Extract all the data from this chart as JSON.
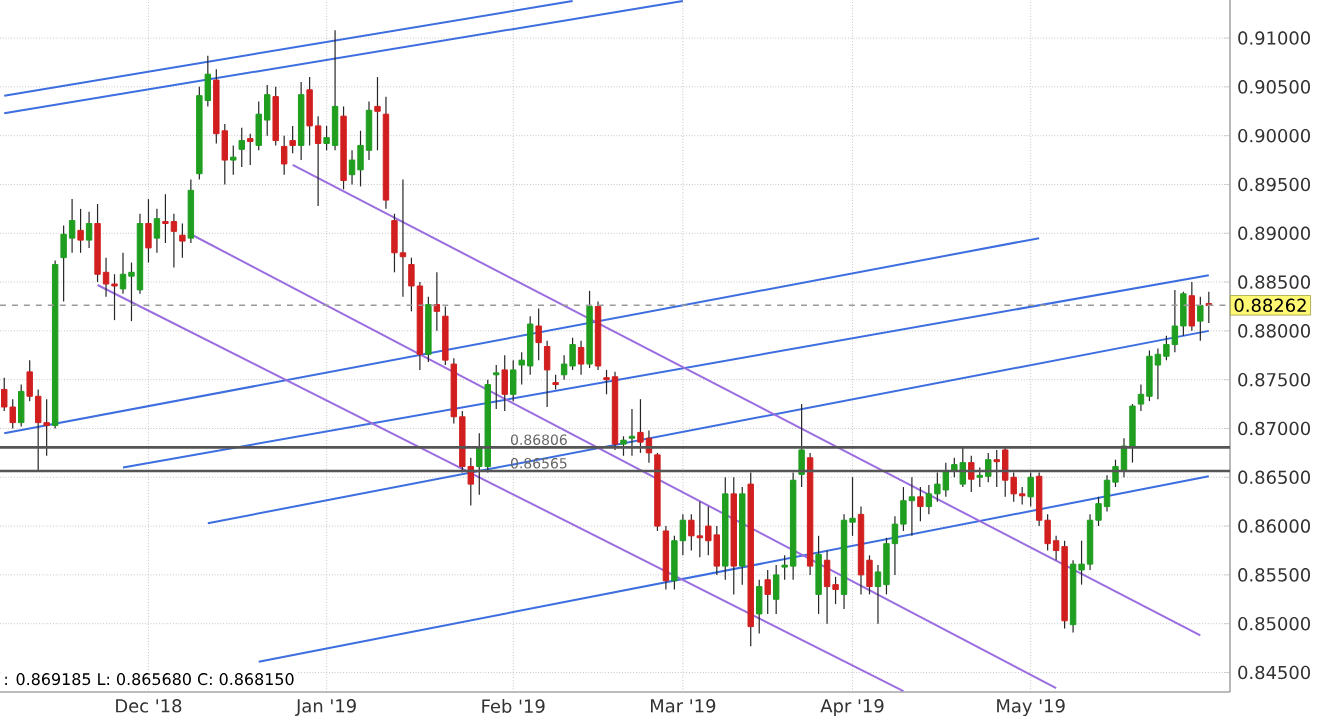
{
  "chart_data": {
    "type": "candlestick",
    "categories": [
      null,
      null,
      null,
      null,
      null,
      null,
      null,
      null,
      null,
      null,
      null,
      null,
      null,
      null,
      null,
      null,
      null,
      "Dec '18",
      null,
      null,
      null,
      null,
      null,
      null,
      null,
      null,
      null,
      null,
      null,
      null,
      null,
      null,
      null,
      null,
      null,
      null,
      null,
      null,
      "Jan '19",
      null,
      null,
      null,
      null,
      null,
      null,
      null,
      null,
      null,
      null,
      null,
      null,
      null,
      null,
      null,
      null,
      null,
      null,
      null,
      null,
      null,
      "Feb '19",
      null,
      null,
      null,
      null,
      null,
      null,
      null,
      null,
      null,
      null,
      null,
      null,
      null,
      null,
      null,
      null,
      null,
      null,
      null,
      "Mar '19",
      null,
      null,
      null,
      null,
      null,
      null,
      null,
      null,
      null,
      null,
      null,
      null,
      null,
      null,
      null,
      null,
      null,
      null,
      null,
      "Apr '19",
      null,
      null,
      null,
      null,
      null,
      null,
      null,
      null,
      null,
      null,
      null,
      null,
      null,
      null,
      null,
      null,
      null,
      null,
      null,
      null,
      "May '19",
      null,
      null,
      null,
      null,
      null,
      null,
      null,
      null,
      null,
      null,
      null,
      null,
      null,
      null,
      null,
      null,
      null,
      null,
      null,
      null,
      null
    ],
    "ohlc": [
      [
        0.874,
        0.8752,
        0.8718,
        0.8722
      ],
      [
        0.8722,
        0.873,
        0.87,
        0.8706
      ],
      [
        0.8706,
        0.8745,
        0.8702,
        0.8738
      ],
      [
        0.8758,
        0.877,
        0.8728,
        0.8733
      ],
      [
        0.8733,
        0.874,
        0.8657,
        0.8706
      ],
      [
        0.8706,
        0.873,
        0.8672,
        0.8703
      ],
      [
        0.8703,
        0.8872,
        0.87,
        0.8868
      ],
      [
        0.8875,
        0.8908,
        0.883,
        0.8899
      ],
      [
        0.8895,
        0.8935,
        0.888,
        0.8913
      ],
      [
        0.8903,
        0.8925,
        0.888,
        0.8893
      ],
      [
        0.8893,
        0.8922,
        0.8885,
        0.891
      ],
      [
        0.891,
        0.893,
        0.885,
        0.8858
      ],
      [
        0.886,
        0.8875,
        0.8835,
        0.8848
      ],
      [
        0.8848,
        0.8858,
        0.8811,
        0.8846
      ],
      [
        0.8843,
        0.888,
        0.8838,
        0.8858
      ],
      [
        0.8856,
        0.887,
        0.881,
        0.886
      ],
      [
        0.8842,
        0.892,
        0.8838,
        0.891
      ],
      [
        0.891,
        0.8935,
        0.887,
        0.8885
      ],
      [
        0.8895,
        0.8925,
        0.888,
        0.8915
      ],
      [
        0.8912,
        0.894,
        0.889,
        0.891
      ],
      [
        0.8912,
        0.892,
        0.8865,
        0.8902
      ],
      [
        0.8898,
        0.891,
        0.8875,
        0.8892
      ],
      [
        0.8895,
        0.8955,
        0.889,
        0.8944
      ],
      [
        0.8961,
        0.905,
        0.8955,
        0.9041
      ],
      [
        0.9036,
        0.9082,
        0.903,
        0.9063
      ],
      [
        0.9057,
        0.9068,
        0.8992,
        0.9002
      ],
      [
        0.9005,
        0.9012,
        0.895,
        0.8975
      ],
      [
        0.8975,
        0.899,
        0.896,
        0.8978
      ],
      [
        0.8986,
        0.9008,
        0.8968,
        0.8995
      ],
      [
        0.8997,
        0.9002,
        0.897,
        0.8994
      ],
      [
        0.899,
        0.9035,
        0.8985,
        0.9022
      ],
      [
        0.9016,
        0.9052,
        0.9,
        0.9042
      ],
      [
        0.904,
        0.905,
        0.899,
        0.8995
      ],
      [
        0.8989,
        0.9,
        0.896,
        0.8971
      ],
      [
        0.8995,
        0.901,
        0.8982,
        0.899
      ],
      [
        0.899,
        0.9055,
        0.8975,
        0.9042
      ],
      [
        0.9047,
        0.906,
        0.899,
        0.901
      ],
      [
        0.901,
        0.902,
        0.8928,
        0.8992
      ],
      [
        0.8992,
        0.901,
        0.8985,
        0.8998
      ],
      [
        0.899,
        0.9108,
        0.8985,
        0.903
      ],
      [
        0.902,
        0.903,
        0.8945,
        0.8954
      ],
      [
        0.896,
        0.8985,
        0.895,
        0.8975
      ],
      [
        0.8965,
        0.9005,
        0.8948,
        0.899
      ],
      [
        0.8985,
        0.9035,
        0.8975,
        0.9026
      ],
      [
        0.903,
        0.906,
        0.8985,
        0.9025
      ],
      [
        0.9022,
        0.904,
        0.8925,
        0.8934
      ],
      [
        0.8913,
        0.892,
        0.886,
        0.888
      ],
      [
        0.888,
        0.8955,
        0.8835,
        0.8876
      ],
      [
        0.8868,
        0.8875,
        0.882,
        0.8846
      ],
      [
        0.8846,
        0.885,
        0.876,
        0.8776
      ],
      [
        0.8776,
        0.8835,
        0.8768,
        0.8827
      ],
      [
        0.8827,
        0.886,
        0.88,
        0.882
      ],
      [
        0.8815,
        0.8825,
        0.8765,
        0.877
      ],
      [
        0.8766,
        0.8772,
        0.8705,
        0.8712
      ],
      [
        0.8712,
        0.8718,
        0.8655,
        0.8661
      ],
      [
        0.8661,
        0.867,
        0.8621,
        0.8643
      ],
      [
        0.8661,
        0.8695,
        0.8632,
        0.868
      ],
      [
        0.8661,
        0.875,
        0.8655,
        0.8745
      ],
      [
        0.8755,
        0.8765,
        0.872,
        0.8757
      ],
      [
        0.876,
        0.8775,
        0.8718,
        0.8735
      ],
      [
        0.8735,
        0.877,
        0.8728,
        0.876
      ],
      [
        0.8765,
        0.8778,
        0.8745,
        0.877
      ],
      [
        0.8764,
        0.8815,
        0.8755,
        0.8807
      ],
      [
        0.8805,
        0.8823,
        0.877,
        0.8788
      ],
      [
        0.8784,
        0.879,
        0.8722,
        0.876
      ],
      [
        0.8747,
        0.8755,
        0.874,
        0.8745
      ],
      [
        0.8755,
        0.8775,
        0.875,
        0.8766
      ],
      [
        0.8764,
        0.8793,
        0.876,
        0.8786
      ],
      [
        0.8783,
        0.879,
        0.8755,
        0.8766
      ],
      [
        0.8766,
        0.8841,
        0.8762,
        0.8825
      ],
      [
        0.8825,
        0.883,
        0.876,
        0.8764
      ],
      [
        0.8752,
        0.876,
        0.8735,
        0.875
      ],
      [
        0.8753,
        0.8758,
        0.8678,
        0.8684
      ],
      [
        0.8684,
        0.8692,
        0.8672,
        0.8688
      ],
      [
        0.869,
        0.872,
        0.8672,
        0.8692
      ],
      [
        0.8696,
        0.873,
        0.8675,
        0.8686
      ],
      [
        0.869,
        0.8698,
        0.8665,
        0.8675
      ],
      [
        0.8673,
        0.8675,
        0.8595,
        0.86
      ],
      [
        0.8595,
        0.86,
        0.8535,
        0.8544
      ],
      [
        0.8544,
        0.859,
        0.8535,
        0.8585
      ],
      [
        0.8585,
        0.8612,
        0.857,
        0.8606
      ],
      [
        0.8606,
        0.8612,
        0.8575,
        0.859
      ],
      [
        0.859,
        0.8625,
        0.8568,
        0.8588
      ],
      [
        0.86,
        0.862,
        0.857,
        0.8585
      ],
      [
        0.8591,
        0.86,
        0.855,
        0.8559
      ],
      [
        0.8559,
        0.865,
        0.8545,
        0.8633
      ],
      [
        0.8633,
        0.865,
        0.853,
        0.8559
      ],
      [
        0.8559,
        0.864,
        0.854,
        0.8633
      ],
      [
        0.8643,
        0.8655,
        0.8477,
        0.8497
      ],
      [
        0.851,
        0.8545,
        0.849,
        0.8538
      ],
      [
        0.8545,
        0.8555,
        0.851,
        0.853
      ],
      [
        0.8525,
        0.856,
        0.851,
        0.855
      ],
      [
        0.8558,
        0.857,
        0.8545,
        0.856
      ],
      [
        0.8559,
        0.8655,
        0.8545,
        0.8647
      ],
      [
        0.8653,
        0.8725,
        0.864,
        0.8678
      ],
      [
        0.867,
        0.8675,
        0.855,
        0.8559
      ],
      [
        0.853,
        0.859,
        0.851,
        0.8571
      ],
      [
        0.8565,
        0.8575,
        0.85,
        0.8538
      ],
      [
        0.854,
        0.8548,
        0.852,
        0.8535
      ],
      [
        0.853,
        0.8612,
        0.8515,
        0.8606
      ],
      [
        0.8604,
        0.865,
        0.859,
        0.8608
      ],
      [
        0.8612,
        0.862,
        0.853,
        0.855
      ],
      [
        0.8565,
        0.857,
        0.853,
        0.8538
      ],
      [
        0.8538,
        0.856,
        0.85,
        0.8553
      ],
      [
        0.854,
        0.8588,
        0.853,
        0.8582
      ],
      [
        0.8582,
        0.861,
        0.855,
        0.8602
      ],
      [
        0.8602,
        0.864,
        0.8595,
        0.8626
      ],
      [
        0.8626,
        0.865,
        0.859,
        0.863
      ],
      [
        0.863,
        0.864,
        0.8605,
        0.862
      ],
      [
        0.862,
        0.8642,
        0.8612,
        0.8633
      ],
      [
        0.8633,
        0.8655,
        0.8625,
        0.8643
      ],
      [
        0.8637,
        0.8665,
        0.863,
        0.8657
      ],
      [
        0.8657,
        0.867,
        0.865,
        0.8663
      ],
      [
        0.8643,
        0.868,
        0.864,
        0.8665
      ],
      [
        0.8665,
        0.8672,
        0.8635,
        0.8648
      ],
      [
        0.865,
        0.866,
        0.864,
        0.8652
      ],
      [
        0.8651,
        0.8675,
        0.8645,
        0.8668
      ],
      [
        0.8668,
        0.8678,
        0.864,
        0.8666
      ],
      [
        0.8678,
        0.8682,
        0.863,
        0.8647
      ],
      [
        0.865,
        0.8655,
        0.8625,
        0.8633
      ],
      [
        0.8633,
        0.864,
        0.8622,
        0.8631
      ],
      [
        0.863,
        0.8655,
        0.862,
        0.865
      ],
      [
        0.8651,
        0.8655,
        0.86,
        0.8606
      ],
      [
        0.8606,
        0.8612,
        0.8575,
        0.8582
      ],
      [
        0.8585,
        0.859,
        0.8565,
        0.8575
      ],
      [
        0.8579,
        0.8585,
        0.8495,
        0.8503
      ],
      [
        0.8499,
        0.8565,
        0.8491,
        0.8561
      ],
      [
        0.8555,
        0.8585,
        0.854,
        0.8561
      ],
      [
        0.8561,
        0.8612,
        0.8555,
        0.8606
      ],
      [
        0.8606,
        0.863,
        0.86,
        0.8623
      ],
      [
        0.862,
        0.8652,
        0.8615,
        0.8647
      ],
      [
        0.8645,
        0.8668,
        0.864,
        0.8661
      ],
      [
        0.8657,
        0.869,
        0.865,
        0.8682
      ],
      [
        0.8682,
        0.8725,
        0.8665,
        0.8723
      ],
      [
        0.8725,
        0.8745,
        0.8718,
        0.8735
      ],
      [
        0.8733,
        0.878,
        0.8728,
        0.8774
      ],
      [
        0.8765,
        0.8782,
        0.873,
        0.8776
      ],
      [
        0.8774,
        0.8795,
        0.877,
        0.8786
      ],
      [
        0.8786,
        0.8842,
        0.8778,
        0.8805
      ],
      [
        0.8805,
        0.884,
        0.8795,
        0.8838
      ],
      [
        0.8836,
        0.885,
        0.88,
        0.8805
      ],
      [
        0.881,
        0.8835,
        0.879,
        0.8826
      ],
      [
        0.8828,
        0.884,
        0.8808,
        0.8826
      ]
    ],
    "colors": [
      "#d11f1f",
      "#d11f1f",
      "#1f9e1f",
      "#d11f1f",
      "#d11f1f",
      "#d11f1f",
      "#1f9e1f",
      "#1f9e1f",
      "#1f9e1f",
      "#d11f1f",
      "#1f9e1f",
      "#d11f1f",
      "#d11f1f",
      "#d11f1f",
      "#1f9e1f",
      "#1f9e1f",
      "#1f9e1f",
      "#d11f1f",
      "#1f9e1f",
      "#d11f1f",
      "#d11f1f",
      "#d11f1f",
      "#1f9e1f",
      "#1f9e1f",
      "#1f9e1f",
      "#d11f1f",
      "#d11f1f",
      "#1f9e1f",
      "#1f9e1f",
      "#d11f1f",
      "#1f9e1f",
      "#1f9e1f",
      "#d11f1f",
      "#d11f1f",
      "#d11f1f",
      "#1f9e1f",
      "#d11f1f",
      "#d11f1f",
      "#1f9e1f",
      "#1f9e1f",
      "#d11f1f",
      "#1f9e1f",
      "#1f9e1f",
      "#1f9e1f",
      "#d11f1f",
      "#d11f1f",
      "#d11f1f",
      "#d11f1f",
      "#d11f1f",
      "#d11f1f",
      "#1f9e1f",
      "#d11f1f",
      "#d11f1f",
      "#d11f1f",
      "#d11f1f",
      "#d11f1f",
      "#1f9e1f",
      "#1f9e1f",
      "#1f9e1f",
      "#d11f1f",
      "#1f9e1f",
      "#1f9e1f",
      "#1f9e1f",
      "#d11f1f",
      "#d11f1f",
      "#d11f1f",
      "#1f9e1f",
      "#1f9e1f",
      "#d11f1f",
      "#1f9e1f",
      "#d11f1f",
      "#d11f1f",
      "#d11f1f",
      "#1f9e1f",
      "#1f9e1f",
      "#d11f1f",
      "#d11f1f",
      "#d11f1f",
      "#d11f1f",
      "#1f9e1f",
      "#1f9e1f",
      "#d11f1f",
      "#d11f1f",
      "#d11f1f",
      "#d11f1f",
      "#1f9e1f",
      "#d11f1f",
      "#1f9e1f",
      "#d11f1f",
      "#1f9e1f",
      "#d11f1f",
      "#1f9e1f",
      "#1f9e1f",
      "#1f9e1f",
      "#1f9e1f",
      "#d11f1f",
      "#1f9e1f",
      "#d11f1f",
      "#d11f1f",
      "#1f9e1f",
      "#1f9e1f",
      "#d11f1f",
      "#d11f1f",
      "#1f9e1f",
      "#1f9e1f",
      "#1f9e1f",
      "#1f9e1f",
      "#1f9e1f",
      "#d11f1f",
      "#1f9e1f",
      "#1f9e1f",
      "#1f9e1f",
      "#1f9e1f",
      "#1f9e1f",
      "#d11f1f",
      "#1f9e1f",
      "#1f9e1f",
      "#d11f1f",
      "#d11f1f",
      "#d11f1f",
      "#d11f1f",
      "#1f9e1f",
      "#d11f1f",
      "#d11f1f",
      "#d11f1f",
      "#d11f1f",
      "#1f9e1f",
      "#1f9e1f",
      "#1f9e1f",
      "#1f9e1f",
      "#1f9e1f",
      "#1f9e1f",
      "#1f9e1f",
      "#1f9e1f",
      "#1f9e1f",
      "#1f9e1f",
      "#1f9e1f",
      "#1f9e1f",
      "#1f9e1f",
      "#1f9e1f",
      "#d11f1f",
      "#1f9e1f",
      "#d11f1f"
    ],
    "series": [
      {
        "type": "line",
        "color": "#3d6ee0",
        "values": [
          0.9041,
          null,
          null,
          null,
          null,
          null,
          null,
          null,
          null,
          null,
          null,
          null,
          null,
          null,
          null,
          null,
          null,
          null,
          null,
          null,
          null,
          null,
          null,
          null,
          null,
          null,
          null,
          null,
          null,
          null,
          null,
          null,
          null,
          null,
          null,
          null,
          null,
          null,
          null,
          null,
          null,
          null,
          null,
          null,
          null,
          null,
          null,
          null,
          null,
          null,
          null,
          null,
          null,
          null,
          null,
          null,
          null,
          null,
          null,
          null,
          null,
          null,
          null,
          null,
          null,
          null,
          null,
          0.9138,
          null,
          null,
          null,
          null,
          null,
          null,
          null,
          null,
          null,
          null,
          null,
          null,
          null,
          null,
          null,
          null,
          null,
          null,
          null,
          null,
          null,
          null,
          null,
          null,
          null,
          null,
          null,
          null,
          null,
          null,
          null,
          null,
          null,
          null,
          null,
          null,
          null,
          null,
          null,
          null,
          null,
          null,
          null,
          null,
          null,
          null,
          null,
          null,
          null,
          null,
          null,
          null,
          null,
          null,
          null,
          null,
          null,
          null,
          null,
          null,
          null,
          null,
          null,
          null,
          null,
          null,
          null,
          null,
          null,
          null,
          null,
          null,
          null,
          null,
          null
        ]
      },
      {
        "type": "line",
        "color": "#3d6ee0",
        "values": [
          0.9023,
          null,
          null,
          null,
          null,
          null,
          null,
          null,
          null,
          null,
          null,
          null,
          null,
          null,
          null,
          null,
          null,
          null,
          null,
          null,
          null,
          null,
          null,
          null,
          null,
          null,
          null,
          null,
          null,
          null,
          null,
          null,
          null,
          null,
          null,
          null,
          null,
          null,
          null,
          null,
          null,
          null,
          null,
          null,
          null,
          null,
          null,
          null,
          null,
          null,
          null,
          null,
          null,
          null,
          null,
          null,
          null,
          null,
          null,
          null,
          null,
          null,
          null,
          null,
          null,
          null,
          null,
          null,
          null,
          null,
          null,
          null,
          null,
          null,
          null,
          null,
          null,
          null,
          null,
          null,
          0.9138,
          null,
          null,
          null,
          null,
          null,
          null,
          null,
          null,
          null,
          null,
          null,
          null,
          null,
          null,
          null,
          null,
          null,
          null,
          null,
          null,
          null,
          null,
          null,
          null,
          null,
          null,
          null,
          null,
          null,
          null,
          null,
          null,
          null,
          null,
          null,
          null,
          null,
          null,
          null,
          null,
          null,
          null,
          null,
          null,
          null,
          null,
          null,
          null,
          null,
          null,
          null,
          null,
          null,
          null,
          null,
          null,
          null,
          null,
          null,
          null,
          null,
          null
        ]
      },
      {
        "type": "line",
        "color": "#3d6ee0",
        "values": [
          0.8695,
          null,
          null,
          null,
          null,
          null,
          null,
          null,
          null,
          null,
          null,
          null,
          null,
          null,
          null,
          null,
          null,
          null,
          null,
          null,
          null,
          null,
          null,
          null,
          null,
          null,
          null,
          null,
          null,
          null,
          null,
          null,
          null,
          null,
          null,
          null,
          null,
          null,
          null,
          null,
          null,
          null,
          null,
          null,
          null,
          null,
          null,
          null,
          null,
          null,
          null,
          null,
          null,
          null,
          null,
          null,
          null,
          null,
          null,
          null,
          null,
          null,
          null,
          null,
          null,
          null,
          null,
          null,
          null,
          null,
          null,
          null,
          null,
          null,
          null,
          null,
          null,
          null,
          null,
          null,
          null,
          null,
          null,
          null,
          null,
          null,
          null,
          null,
          null,
          null,
          null,
          null,
          null,
          null,
          null,
          null,
          null,
          null,
          null,
          null,
          null,
          null,
          null,
          null,
          null,
          null,
          null,
          null,
          null,
          null,
          null,
          null,
          null,
          null,
          null,
          null,
          null,
          null,
          null,
          null,
          null,
          null,
          0.8895,
          null,
          null,
          null,
          null,
          null,
          null,
          null,
          null,
          null,
          null,
          null,
          null,
          null,
          null,
          null,
          null,
          null,
          null,
          null,
          null
        ]
      },
      {
        "type": "line",
        "color": "#3d6ee0",
        "values": [
          null,
          null,
          null,
          null,
          null,
          null,
          null,
          null,
          null,
          null,
          null,
          null,
          null,
          null,
          0.866,
          null,
          null,
          null,
          null,
          null,
          null,
          null,
          null,
          null,
          null,
          null,
          null,
          null,
          null,
          null,
          null,
          null,
          null,
          null,
          null,
          null,
          null,
          null,
          null,
          null,
          null,
          null,
          null,
          null,
          null,
          null,
          null,
          null,
          null,
          null,
          null,
          null,
          null,
          null,
          null,
          null,
          null,
          null,
          null,
          null,
          null,
          null,
          null,
          null,
          null,
          null,
          null,
          null,
          null,
          null,
          null,
          null,
          null,
          null,
          null,
          null,
          null,
          null,
          null,
          null,
          null,
          null,
          null,
          null,
          null,
          null,
          null,
          null,
          null,
          null,
          null,
          null,
          null,
          null,
          null,
          null,
          null,
          null,
          null,
          null,
          null,
          null,
          null,
          null,
          null,
          null,
          null,
          null,
          null,
          null,
          null,
          null,
          null,
          null,
          null,
          null,
          null,
          null,
          null,
          null,
          null,
          null,
          null,
          null,
          null,
          null,
          null,
          null,
          null,
          null,
          null,
          null,
          null,
          null,
          null,
          null,
          null,
          null,
          null,
          null,
          null,
          null,
          0.8857
        ]
      },
      {
        "type": "line",
        "color": "#3d6ee0",
        "values": [
          null,
          null,
          null,
          null,
          null,
          null,
          null,
          null,
          null,
          null,
          null,
          null,
          null,
          null,
          null,
          null,
          null,
          null,
          null,
          null,
          null,
          null,
          null,
          null,
          0.8603,
          null,
          null,
          null,
          null,
          null,
          null,
          null,
          null,
          null,
          null,
          null,
          null,
          null,
          null,
          null,
          null,
          null,
          null,
          null,
          null,
          null,
          null,
          null,
          null,
          null,
          null,
          null,
          null,
          null,
          null,
          null,
          null,
          null,
          null,
          null,
          null,
          null,
          null,
          null,
          null,
          null,
          null,
          null,
          null,
          null,
          null,
          null,
          null,
          null,
          null,
          null,
          null,
          null,
          null,
          null,
          null,
          null,
          null,
          null,
          null,
          null,
          null,
          null,
          null,
          null,
          null,
          null,
          null,
          null,
          null,
          null,
          null,
          null,
          null,
          null,
          null,
          null,
          null,
          null,
          null,
          null,
          null,
          null,
          null,
          null,
          null,
          null,
          null,
          null,
          null,
          null,
          null,
          null,
          null,
          null,
          null,
          null,
          null,
          null,
          null,
          null,
          null,
          null,
          null,
          null,
          null,
          null,
          null,
          null,
          null,
          null,
          null,
          null,
          null,
          null,
          null,
          null,
          0.88
        ]
      },
      {
        "type": "line",
        "color": "#3d6ee0",
        "values": [
          null,
          null,
          null,
          null,
          null,
          null,
          null,
          null,
          null,
          null,
          null,
          null,
          null,
          null,
          null,
          null,
          null,
          null,
          null,
          null,
          null,
          null,
          null,
          null,
          null,
          null,
          null,
          null,
          null,
          null,
          0.8461,
          null,
          null,
          null,
          null,
          null,
          null,
          null,
          null,
          null,
          null,
          null,
          null,
          null,
          null,
          null,
          null,
          null,
          null,
          null,
          null,
          null,
          null,
          null,
          null,
          null,
          null,
          null,
          null,
          null,
          null,
          null,
          null,
          null,
          null,
          null,
          null,
          null,
          null,
          null,
          null,
          null,
          null,
          null,
          null,
          null,
          null,
          null,
          null,
          null,
          null,
          null,
          null,
          null,
          null,
          null,
          null,
          null,
          null,
          null,
          null,
          null,
          null,
          null,
          null,
          null,
          null,
          null,
          null,
          null,
          null,
          null,
          null,
          null,
          null,
          null,
          null,
          null,
          null,
          null,
          null,
          null,
          null,
          null,
          null,
          null,
          null,
          null,
          null,
          null,
          null,
          null,
          null,
          null,
          null,
          null,
          null,
          null,
          null,
          null,
          null,
          null,
          null,
          null,
          null,
          null,
          null,
          null,
          null,
          null,
          null,
          null,
          0.8651
        ]
      },
      {
        "type": "line",
        "color": "#9b6ee0",
        "values": [
          null,
          null,
          null,
          null,
          null,
          null,
          null,
          null,
          null,
          null,
          null,
          null,
          null,
          null,
          null,
          null,
          null,
          null,
          null,
          null,
          null,
          null,
          null,
          null,
          null,
          null,
          null,
          null,
          null,
          null,
          null,
          null,
          null,
          null,
          0.897,
          null,
          null,
          null,
          null,
          null,
          null,
          null,
          null,
          null,
          null,
          null,
          null,
          null,
          null,
          null,
          null,
          null,
          null,
          null,
          null,
          null,
          null,
          null,
          null,
          null,
          null,
          null,
          null,
          null,
          null,
          null,
          null,
          null,
          null,
          null,
          null,
          null,
          null,
          null,
          null,
          null,
          null,
          null,
          null,
          null,
          null,
          null,
          null,
          null,
          null,
          null,
          null,
          null,
          null,
          null,
          null,
          null,
          null,
          null,
          null,
          null,
          null,
          null,
          null,
          null,
          null,
          null,
          null,
          null,
          null,
          null,
          null,
          null,
          null,
          null,
          null,
          null,
          null,
          null,
          null,
          null,
          null,
          null,
          null,
          null,
          null,
          null,
          null,
          null,
          null,
          null,
          null,
          null,
          null,
          null,
          null,
          null,
          null,
          null,
          null,
          null,
          null,
          null,
          null,
          null,
          null,
          0.8488,
          null
        ]
      },
      {
        "type": "line",
        "color": "#9b6ee0",
        "values": [
          null,
          null,
          null,
          null,
          null,
          null,
          null,
          null,
          null,
          null,
          null,
          null,
          null,
          null,
          null,
          null,
          null,
          null,
          null,
          null,
          null,
          null,
          0.8899,
          null,
          null,
          null,
          null,
          null,
          null,
          null,
          null,
          null,
          null,
          null,
          null,
          null,
          null,
          null,
          null,
          null,
          null,
          null,
          null,
          null,
          null,
          null,
          null,
          null,
          null,
          null,
          null,
          null,
          null,
          null,
          null,
          null,
          null,
          null,
          null,
          null,
          null,
          null,
          null,
          null,
          null,
          null,
          null,
          null,
          null,
          null,
          null,
          null,
          null,
          null,
          null,
          null,
          null,
          null,
          null,
          null,
          null,
          null,
          null,
          null,
          null,
          null,
          null,
          null,
          null,
          null,
          null,
          null,
          null,
          null,
          null,
          null,
          null,
          null,
          null,
          null,
          null,
          null,
          null,
          null,
          null,
          null,
          null,
          null,
          null,
          null,
          null,
          null,
          null,
          null,
          null,
          null,
          null,
          null,
          null,
          null,
          null,
          null,
          null,
          null,
          0.8434,
          null,
          null,
          null,
          null,
          null,
          null,
          null,
          null,
          null,
          null,
          null,
          null,
          null,
          null,
          null,
          null,
          null,
          null
        ]
      },
      {
        "type": "line",
        "color": "#9b6ee0",
        "values": [
          null,
          null,
          null,
          null,
          null,
          null,
          null,
          null,
          null,
          null,
          null,
          0.8847,
          null,
          null,
          null,
          null,
          null,
          null,
          null,
          null,
          null,
          null,
          null,
          null,
          null,
          null,
          null,
          null,
          null,
          null,
          null,
          null,
          null,
          null,
          null,
          null,
          null,
          null,
          null,
          null,
          null,
          null,
          null,
          null,
          null,
          null,
          null,
          null,
          null,
          null,
          null,
          null,
          null,
          null,
          null,
          null,
          null,
          null,
          null,
          null,
          null,
          null,
          null,
          null,
          null,
          null,
          null,
          null,
          null,
          null,
          null,
          null,
          null,
          null,
          null,
          null,
          null,
          null,
          null,
          null,
          null,
          null,
          null,
          null,
          null,
          null,
          null,
          null,
          null,
          null,
          null,
          null,
          null,
          null,
          null,
          null,
          null,
          null,
          null,
          null,
          null,
          null,
          null,
          null,
          null,
          null,
          0.8431,
          null,
          null,
          null,
          null,
          null,
          null,
          null,
          null,
          null,
          null,
          null,
          null,
          null,
          null,
          null,
          null,
          null,
          null,
          null,
          null,
          null,
          null,
          null,
          null,
          null,
          null,
          null,
          null,
          null,
          null,
          null,
          null,
          null,
          null,
          null,
          null
        ]
      }
    ],
    "ylim": [
      0.843,
      0.9139
    ],
    "yticks": [
      {
        "value": 0.845,
        "label": "0.84500"
      },
      {
        "value": 0.85,
        "label": "0.85000"
      },
      {
        "value": 0.855,
        "label": "0.85500"
      },
      {
        "value": 0.86,
        "label": "0.86000"
      },
      {
        "value": 0.865,
        "label": "0.86500"
      },
      {
        "value": 0.87,
        "label": "0.87000"
      },
      {
        "value": 0.875,
        "label": "0.87500"
      },
      {
        "value": 0.88,
        "label": "0.88000"
      },
      {
        "value": 0.885,
        "label": "0.88500"
      },
      {
        "value": 0.89,
        "label": "0.89000"
      },
      {
        "value": 0.895,
        "label": "0.89500"
      },
      {
        "value": 0.9,
        "label": "0.90000"
      },
      {
        "value": 0.905,
        "label": "0.90500"
      },
      {
        "value": 0.91,
        "label": "0.91000"
      }
    ],
    "grid": true,
    "ref_lines": [
      {
        "axis": "y",
        "value": 0.86806,
        "label": "0.86806",
        "color": "#555555"
      },
      {
        "axis": "y",
        "value": 0.86565,
        "label": "0.86565",
        "color": "#555555"
      },
      {
        "axis": "y",
        "value": 0.88262,
        "label": "0.88262",
        "color": "#999999",
        "line_style": "dashed"
      }
    ],
    "annotations": [
      ": 0.869185  L: 0.865680  C: 0.868150"
    ]
  }
}
